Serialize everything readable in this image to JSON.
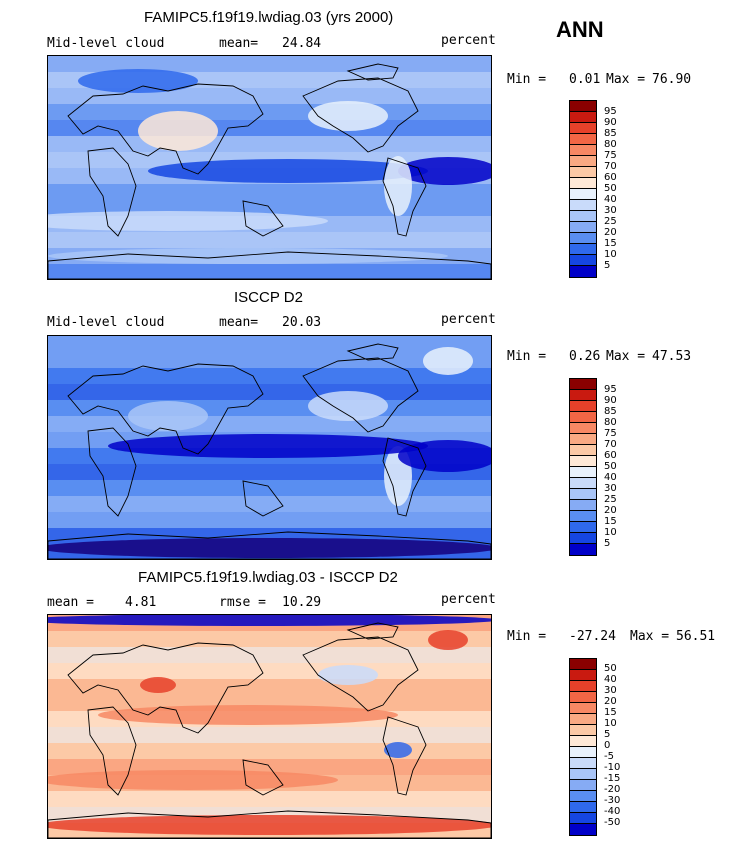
{
  "season": "ANN",
  "palettes": {
    "abs": [
      "#15007b",
      "#0000c8",
      "#1546e2",
      "#2f69ec",
      "#5a8ef1",
      "#86abf4",
      "#a9c5f7",
      "#c9dbfa",
      "#e8f1fc",
      "#ffe9d7",
      "#fcc9a6",
      "#f9a983",
      "#f78864",
      "#f26645",
      "#e6412a",
      "#c91a10",
      "#8a0000"
    ],
    "diff": [
      "#15007b",
      "#0000c8",
      "#1546e2",
      "#2f69ec",
      "#5a8ef1",
      "#86abf4",
      "#a9c5f7",
      "#c9dbfa",
      "#e8f1fc",
      "#ffe9d7",
      "#fcc9a6",
      "#f9a983",
      "#f78864",
      "#f26645",
      "#e6412a",
      "#c91a10",
      "#8a0000"
    ]
  },
  "panels": [
    {
      "id": "model",
      "title": "FAMIPC5.f19f19.lwdiag.03 (yrs 2000)",
      "left_label": "Mid-level cloud",
      "stat_label": "mean=",
      "stat_value": "24.84",
      "units": "percent",
      "min_label": "Min =",
      "min_value": "0.01",
      "max_label": "Max =",
      "max_value": "76.90",
      "colorbar_labels": [
        "95",
        "90",
        "85",
        "80",
        "75",
        "70",
        "60",
        "50",
        "40",
        "30",
        "25",
        "20",
        "15",
        "10",
        "5"
      ],
      "palette": "abs",
      "base_level": 0.32
    },
    {
      "id": "obs",
      "title": "ISCCP D2",
      "left_label": "Mid-level cloud",
      "stat_label": "mean=",
      "stat_value": "20.03",
      "units": "percent",
      "min_label": "Min =",
      "min_value": "0.26",
      "max_label": "Max =",
      "max_value": "47.53",
      "colorbar_labels": [
        "95",
        "90",
        "85",
        "80",
        "75",
        "70",
        "60",
        "50",
        "40",
        "30",
        "25",
        "20",
        "15",
        "10",
        "5"
      ],
      "palette": "abs",
      "base_level": 0.24
    },
    {
      "id": "diff",
      "title": "FAMIPC5.f19f19.lwdiag.03 - ISCCP D2",
      "left_label": "mean =",
      "left_value": "4.81",
      "stat_label": "rmse =",
      "stat_value": "10.29",
      "units": "percent",
      "min_label": "Min =",
      "min_value": "-27.24",
      "max_label": "Max =",
      "max_value": "56.51",
      "colorbar_labels": [
        "50",
        "40",
        "30",
        "20",
        "15",
        "10",
        "5",
        "0",
        "-5",
        "-10",
        "-15",
        "-20",
        "-30",
        "-40",
        "-50"
      ],
      "palette": "diff",
      "base_level": 0.62
    }
  ]
}
